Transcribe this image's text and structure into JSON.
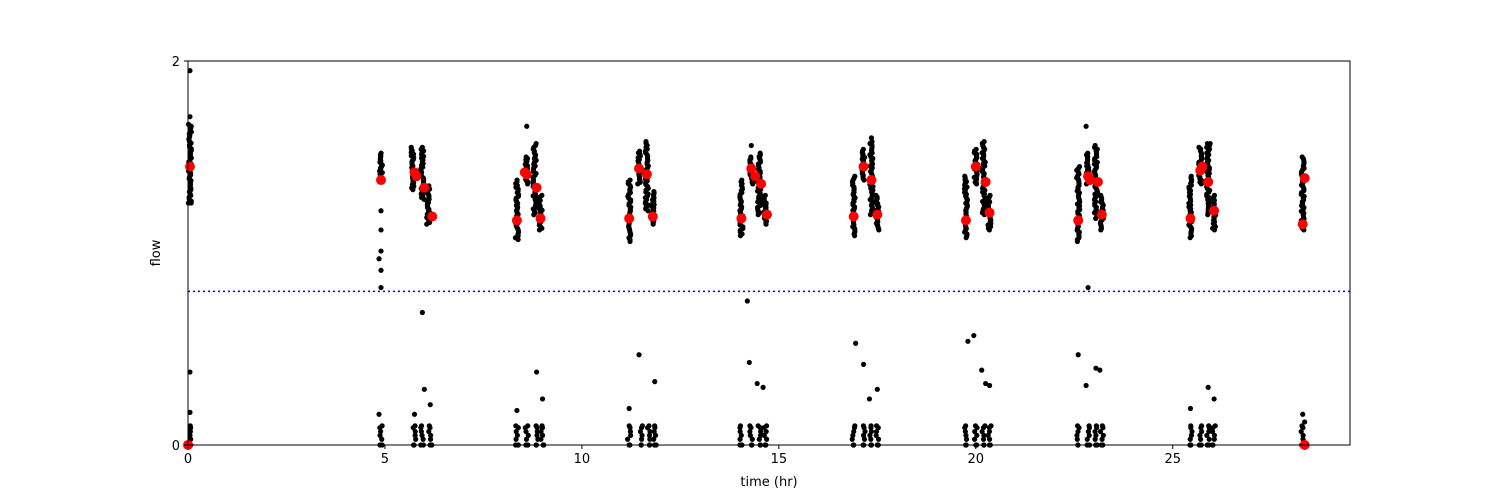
{
  "chart_data": {
    "type": "scatter",
    "title": "",
    "xlabel": "time (hr)",
    "ylabel": "flow",
    "xlim": [
      0,
      29.5
    ],
    "ylim": [
      0,
      2
    ],
    "xticks": [
      0,
      5,
      10,
      15,
      20,
      25
    ],
    "yticks": [
      0,
      2
    ],
    "grid": false,
    "threshold_line": {
      "y": 0.8,
      "color": "#0000ff",
      "style": "dotted"
    },
    "colors": {
      "raw": "#000000",
      "summary": "#ff0000"
    },
    "raw_clusters": [
      {
        "x": 0.05,
        "ymin": 1.26,
        "ymax": 1.67
      },
      {
        "x": 4.9,
        "ymin": 1.38,
        "ymax": 1.52
      },
      {
        "x": 5.7,
        "ymin": 1.33,
        "ymax": 1.55
      },
      {
        "x": 5.95,
        "ymin": 1.28,
        "ymax": 1.55
      },
      {
        "x": 6.1,
        "ymin": 1.15,
        "ymax": 1.35
      },
      {
        "x": 8.35,
        "ymin": 1.07,
        "ymax": 1.38
      },
      {
        "x": 8.6,
        "ymin": 1.36,
        "ymax": 1.5
      },
      {
        "x": 8.8,
        "ymin": 1.2,
        "ymax": 1.57
      },
      {
        "x": 8.95,
        "ymin": 1.12,
        "ymax": 1.3
      },
      {
        "x": 11.2,
        "ymin": 1.06,
        "ymax": 1.38
      },
      {
        "x": 11.45,
        "ymin": 1.36,
        "ymax": 1.53
      },
      {
        "x": 11.65,
        "ymin": 1.22,
        "ymax": 1.58
      },
      {
        "x": 11.8,
        "ymin": 1.15,
        "ymax": 1.32
      },
      {
        "x": 14.05,
        "ymin": 1.09,
        "ymax": 1.38
      },
      {
        "x": 14.3,
        "ymin": 1.36,
        "ymax": 1.5
      },
      {
        "x": 14.5,
        "ymin": 1.2,
        "ymax": 1.52
      },
      {
        "x": 14.65,
        "ymin": 1.15,
        "ymax": 1.3
      },
      {
        "x": 16.9,
        "ymin": 1.09,
        "ymax": 1.4
      },
      {
        "x": 17.15,
        "ymin": 1.38,
        "ymax": 1.54
      },
      {
        "x": 17.35,
        "ymin": 1.2,
        "ymax": 1.58
      },
      {
        "x": 17.5,
        "ymin": 1.12,
        "ymax": 1.3
      },
      {
        "x": 19.75,
        "ymin": 1.08,
        "ymax": 1.4
      },
      {
        "x": 20.0,
        "ymin": 1.36,
        "ymax": 1.54
      },
      {
        "x": 20.2,
        "ymin": 1.2,
        "ymax": 1.58
      },
      {
        "x": 20.35,
        "ymin": 1.12,
        "ymax": 1.3
      },
      {
        "x": 22.6,
        "ymin": 1.06,
        "ymax": 1.45
      },
      {
        "x": 22.85,
        "ymin": 1.36,
        "ymax": 1.52
      },
      {
        "x": 23.05,
        "ymin": 1.18,
        "ymax": 1.56
      },
      {
        "x": 23.2,
        "ymin": 1.12,
        "ymax": 1.3
      },
      {
        "x": 25.45,
        "ymin": 1.08,
        "ymax": 1.4
      },
      {
        "x": 25.7,
        "ymin": 1.36,
        "ymax": 1.55
      },
      {
        "x": 25.9,
        "ymin": 1.2,
        "ymax": 1.57
      },
      {
        "x": 26.05,
        "ymin": 1.12,
        "ymax": 1.3
      },
      {
        "x": 28.3,
        "ymin": 1.12,
        "ymax": 1.5
      }
    ],
    "raw_low_clusters_x": [
      0.05,
      4.9,
      5.75,
      5.95,
      6.15,
      8.35,
      8.6,
      8.85,
      9.0,
      11.2,
      11.5,
      11.7,
      11.85,
      14.05,
      14.3,
      14.5,
      14.65,
      16.9,
      17.15,
      17.35,
      17.5,
      19.75,
      20.0,
      20.2,
      20.35,
      22.6,
      22.85,
      23.05,
      23.2,
      25.45,
      25.7,
      25.9,
      26.05,
      28.3
    ],
    "raw_outliers": [
      [
        0.05,
        1.95
      ],
      [
        0.05,
        1.71
      ],
      [
        0.05,
        0.38
      ],
      [
        0.05,
        0.17
      ],
      [
        0.05,
        0.08
      ],
      [
        0.08,
        1.26
      ],
      [
        4.9,
        1.22
      ],
      [
        4.9,
        1.12
      ],
      [
        4.9,
        1.01
      ],
      [
        4.85,
        0.97
      ],
      [
        4.9,
        0.91
      ],
      [
        4.9,
        0.82
      ],
      [
        4.85,
        0.16
      ],
      [
        5.95,
        0.69
      ],
      [
        6.0,
        0.29
      ],
      [
        6.15,
        0.21
      ],
      [
        5.75,
        0.16
      ],
      [
        8.6,
        1.66
      ],
      [
        8.85,
        0.38
      ],
      [
        9.0,
        0.24
      ],
      [
        8.35,
        0.18
      ],
      [
        11.2,
        0.19
      ],
      [
        11.45,
        0.47
      ],
      [
        11.85,
        0.33
      ],
      [
        14.2,
        0.75
      ],
      [
        14.25,
        0.43
      ],
      [
        14.45,
        0.32
      ],
      [
        14.6,
        0.3
      ],
      [
        14.3,
        1.56
      ],
      [
        16.95,
        0.53
      ],
      [
        17.15,
        0.42
      ],
      [
        17.3,
        0.24
      ],
      [
        17.5,
        0.29
      ],
      [
        17.35,
        1.6
      ],
      [
        19.8,
        0.54
      ],
      [
        19.95,
        0.57
      ],
      [
        20.15,
        0.39
      ],
      [
        20.25,
        0.32
      ],
      [
        20.35,
        0.31
      ],
      [
        22.6,
        0.47
      ],
      [
        22.8,
        0.31
      ],
      [
        23.05,
        0.4
      ],
      [
        23.15,
        0.39
      ],
      [
        22.85,
        0.82
      ],
      [
        22.8,
        1.66
      ],
      [
        25.45,
        0.19
      ],
      [
        25.9,
        0.3
      ],
      [
        26.05,
        0.24
      ],
      [
        25.95,
        1.57
      ],
      [
        28.3,
        0.16
      ],
      [
        28.35,
        0.12
      ]
    ],
    "summary_points": [
      [
        0.05,
        1.45
      ],
      [
        0.0,
        0.0
      ],
      [
        4.9,
        1.38
      ],
      [
        5.75,
        1.42
      ],
      [
        5.8,
        1.4
      ],
      [
        6.0,
        1.34
      ],
      [
        6.2,
        1.19
      ],
      [
        8.35,
        1.17
      ],
      [
        8.55,
        1.42
      ],
      [
        8.6,
        1.41
      ],
      [
        8.85,
        1.34
      ],
      [
        8.95,
        1.18
      ],
      [
        11.2,
        1.18
      ],
      [
        11.45,
        1.44
      ],
      [
        11.65,
        1.41
      ],
      [
        11.8,
        1.19
      ],
      [
        14.05,
        1.18
      ],
      [
        14.3,
        1.44
      ],
      [
        14.4,
        1.4
      ],
      [
        14.55,
        1.36
      ],
      [
        14.7,
        1.2
      ],
      [
        16.9,
        1.19
      ],
      [
        17.15,
        1.45
      ],
      [
        17.35,
        1.38
      ],
      [
        17.5,
        1.2
      ],
      [
        19.75,
        1.17
      ],
      [
        20.0,
        1.45
      ],
      [
        20.25,
        1.37
      ],
      [
        20.35,
        1.21
      ],
      [
        22.6,
        1.17
      ],
      [
        22.85,
        1.4
      ],
      [
        22.9,
        1.38
      ],
      [
        23.1,
        1.37
      ],
      [
        23.2,
        1.2
      ],
      [
        25.45,
        1.18
      ],
      [
        25.7,
        1.43
      ],
      [
        25.75,
        1.45
      ],
      [
        25.9,
        1.37
      ],
      [
        26.05,
        1.22
      ],
      [
        28.3,
        1.15
      ],
      [
        28.35,
        1.39
      ],
      [
        28.35,
        0.0
      ]
    ]
  }
}
